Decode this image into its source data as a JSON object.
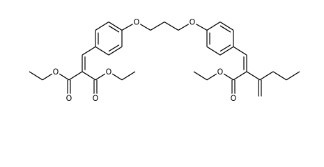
{
  "nodes": [
    {
      "label": "O"
    },
    {
      "label": "O"
    },
    {
      "label": "O"
    },
    {
      "label": "O"
    },
    {
      "label": "O"
    },
    {
      "label": "O"
    },
    {
      "label": "O"
    },
    {
      "label": "O"
    }
  ]
}
